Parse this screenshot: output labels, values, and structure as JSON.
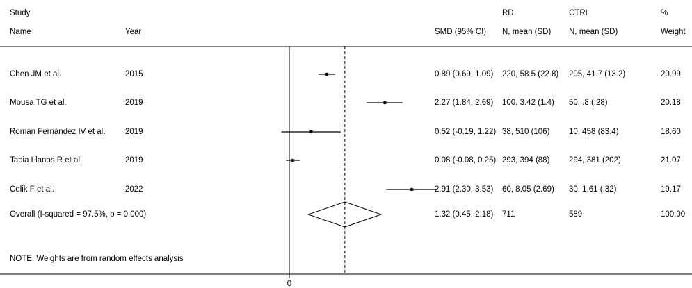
{
  "header": {
    "study_label": "Study",
    "name_label": "Name",
    "year_label": "Year",
    "smd_label": "SMD (95% CI)",
    "rd_label": "RD",
    "rd_sub": "N, mean (SD)",
    "ctrl_label": "CTRL",
    "ctrl_sub": "N, mean (SD)",
    "pct_label": "%",
    "weight_label": "Weight"
  },
  "note": "NOTE: Weights are from random effects analysis",
  "chart_data": {
    "type": "forest",
    "xlim": [
      -0.2,
      3.6
    ],
    "null_line": 0,
    "tick_labels": [
      "0"
    ],
    "studies": [
      {
        "name": "Chen JM et al.",
        "year": "2015",
        "smd": 0.89,
        "lo": 0.69,
        "hi": 1.09,
        "ci_text": "0.89 (0.69, 1.09)",
        "rd": "220, 58.5 (22.8)",
        "ctrl": "205, 41.7 (13.2)",
        "weight": "20.99"
      },
      {
        "name": "Mousa TG et al.",
        "year": "2019",
        "smd": 2.27,
        "lo": 1.84,
        "hi": 2.69,
        "ci_text": "2.27 (1.84, 2.69)",
        "rd": "100, 3.42 (1.4)",
        "ctrl": "50, .8 (.28)",
        "weight": "20.18"
      },
      {
        "name": "Román Fernández IV et al.",
        "year": "2019",
        "smd": 0.52,
        "lo": -0.19,
        "hi": 1.22,
        "ci_text": "0.52 (-0.19, 1.22)",
        "rd": "38, 510 (106)",
        "ctrl": "10, 458 (83.4)",
        "weight": "18.60"
      },
      {
        "name": "Tapia Llanos R et al.",
        "year": "2019",
        "smd": 0.08,
        "lo": -0.08,
        "hi": 0.25,
        "ci_text": "0.08 (-0.08, 0.25)",
        "rd": "293, 394 (88)",
        "ctrl": "294, 381 (202)",
        "weight": "21.07"
      },
      {
        "name": "Celik F et al.",
        "year": "2022",
        "smd": 2.91,
        "lo": 2.3,
        "hi": 3.53,
        "ci_text": "2.91 (2.30, 3.53)",
        "rd": "60, 8.05 (2.69)",
        "ctrl": "30, 1.61 (.32)",
        "weight": "19.17"
      }
    ],
    "overall": {
      "label": "Overall  (I-squared = 97.5%, p = 0.000)",
      "smd": 1.32,
      "lo": 0.45,
      "hi": 2.18,
      "ci_text": "1.32 (0.45, 2.18)",
      "rd": "711",
      "ctrl": "589",
      "weight": "100.00"
    }
  }
}
